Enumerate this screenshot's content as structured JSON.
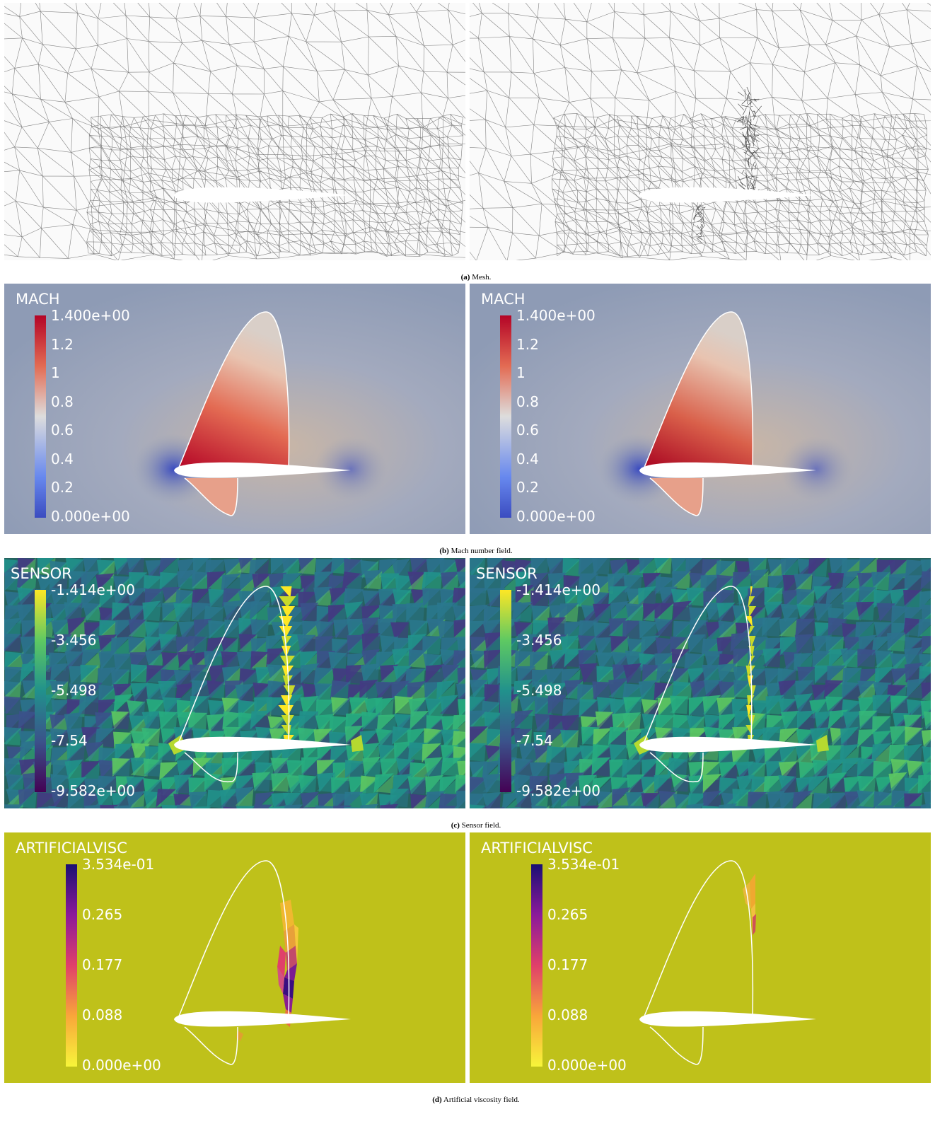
{
  "captions": {
    "a_tag": "(a)",
    "a_text": "Mesh.",
    "b_tag": "(b)",
    "b_text": "Mach number field.",
    "c_tag": "(c)",
    "c_text": "Sensor field.",
    "d_tag": "(d)",
    "d_text": "Artificial viscosity field."
  },
  "mach": {
    "title": "MACH",
    "labels": [
      "1.400e+00",
      "1.2",
      "1",
      "0.8",
      "0.6",
      "0.4",
      "0.2",
      "0.000e+00"
    ],
    "colors": [
      "#b40426",
      "#e36b53",
      "#dddddd",
      "#6788ee",
      "#3b4cc0"
    ],
    "background": "#8e9bb5"
  },
  "sensor": {
    "title": "SENSOR",
    "labels": [
      "-1.414e+00",
      "-3.456",
      "-5.498",
      "-7.54",
      "-9.582e+00"
    ],
    "colors": [
      "#fde725",
      "#5ec962",
      "#21918c",
      "#3b528b",
      "#440154"
    ],
    "background": "#25635f"
  },
  "visc": {
    "title": "ARTIFICIALVISC",
    "labels": [
      "3.534e-01",
      "0.265",
      "0.177",
      "0.088",
      "0.000e+00"
    ],
    "colors": [
      "#1a0f73",
      "#8b1a9a",
      "#e0406a",
      "#f9a63a",
      "#f7f53a"
    ],
    "background": "#bfc11a"
  }
}
